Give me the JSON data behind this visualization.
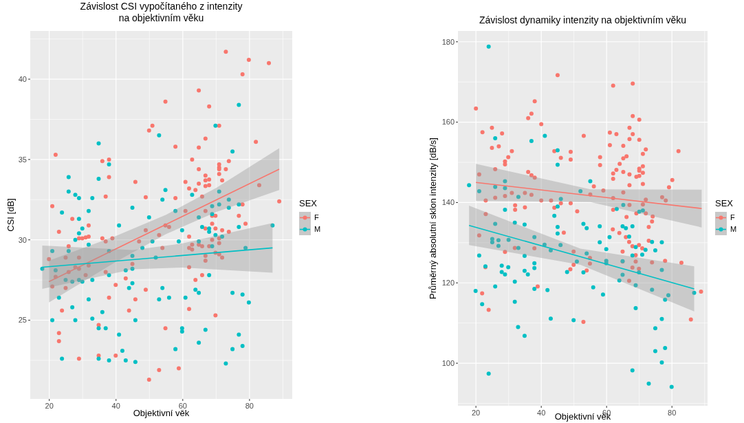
{
  "chart_data": [
    {
      "type": "scatter",
      "title": "Závislost CSI vypočítaného z intenzity\nna objektivním věku",
      "xlabel": "Objektivní věk",
      "ylabel": "CSI [dB]",
      "legend_title": "SEX",
      "legend": "right",
      "grid": true,
      "marker": "circle",
      "xlim": [
        14.3,
        92.8
      ],
      "ylim": [
        20.1,
        43.0
      ],
      "xticks": [
        20,
        {
          "value": 30,
          "label": null
        },
        40,
        {
          "value": 50,
          "label": null
        },
        60,
        {
          "value": 70,
          "label": null
        },
        80,
        {
          "value": 90,
          "label": null
        }
      ],
      "yticks": [
        {
          "value": 22.5,
          "label": null
        },
        25,
        {
          "value": 27.5,
          "label": null
        },
        30,
        {
          "value": 32.5,
          "label": null
        },
        35,
        {
          "value": 37.5,
          "label": null
        },
        40,
        {
          "value": 42.5,
          "label": null
        }
      ],
      "series": [
        {
          "name": "F",
          "color": "#f8766d",
          "x": [
            72.9,
            79.8,
            85.8,
            77.9,
            64.8,
            54.8,
            67.9,
            50.9,
            49.9,
            70.9,
            66.8,
            81.9,
            21.9,
            57.8,
            64.8,
            35.9,
            37.9,
            62.8,
            73.8,
            70.9,
            70.9,
            70.9,
            64.8,
            72.9,
            37.9,
            66.8,
            70.9,
            45.8,
            66.8,
            67.9,
            71.8,
            60.8,
            61.9,
            64.8,
            63.8,
            66.8,
            67.9,
            82.9,
            36.9,
            48.9,
            57.8,
            88.9,
            65.8,
            20.9,
            60.8,
            77.9,
            76.8,
            26.9,
            68.8,
            69.8,
            66.8,
            22.9,
            31.8,
            28.9,
            29.9,
            30.9,
            31.8,
            35.9,
            38.9,
            36.9,
            48.9,
            54.8,
            55.9,
            52.9,
            46.9,
            53.9,
            61.9,
            61.9,
            62.8,
            62.8,
            64.8,
            65.8,
            66.8,
            67.9,
            68.8,
            68.8,
            69.8,
            70.9,
            70.9,
            71.8,
            70.9,
            71.8,
            73.8,
            78.8,
            66.8,
            19.9,
            24.9,
            25.8,
            28.9,
            27.8,
            28.9,
            25.8,
            21.9,
            20.9,
            24.9,
            30.9,
            31.8,
            36.9,
            44.9,
            42.9,
            39.9,
            48.9,
            37.9,
            45.8,
            23.8,
            43.9,
            22.9,
            22.9,
            34.8,
            28.9,
            34.8,
            39.9,
            54.8,
            52.9,
            58.8,
            49.9,
            61.9,
            61.9,
            63.8,
            65.8,
            66.8,
            69.8,
            69.8
          ],
          "values": [
            41.7,
            41.2,
            41.0,
            40.3,
            39.3,
            38.6,
            38.3,
            37.1,
            36.8,
            37.1,
            36.3,
            36.1,
            35.3,
            35.8,
            35.75,
            34.9,
            35.0,
            35.0,
            34.9,
            34.7,
            34.5,
            34.4,
            34.4,
            34.4,
            33.9,
            34.0,
            34.1,
            33.6,
            33.7,
            33.75,
            33.7,
            33.6,
            33.2,
            33.5,
            33.1,
            33.35,
            33.4,
            33.4,
            32.7,
            32.65,
            32.6,
            32.4,
            32.7,
            32.1,
            31.8,
            32.2,
            31.5,
            31.3,
            31.5,
            31.5,
            31.8,
            30.5,
            30.9,
            30.1,
            30.1,
            30.15,
            30.2,
            30.1,
            30.1,
            29.9,
            30.6,
            30.9,
            30.8,
            30.3,
            29.9,
            29.5,
            30.2,
            29.5,
            29.7,
            29.4,
            29.7,
            29.6,
            30.7,
            29.6,
            30.0,
            31.0,
            30.7,
            30.1,
            29.8,
            30.6,
            29.1,
            28.9,
            30.5,
            31.0,
            29.0,
            28.8,
            28.9,
            29.6,
            28.9,
            28.3,
            28.2,
            28.0,
            27.7,
            27.1,
            27.0,
            27.8,
            28.4,
            28.0,
            28.5,
            27.6,
            27.2,
            26.9,
            26.4,
            26.3,
            25.6,
            25.6,
            24.2,
            23.7,
            24.7,
            22.6,
            22.8,
            22.8,
            24.5,
            21.9,
            22.0,
            21.3,
            28.3,
            25.7,
            27.5,
            27.8,
            28.7,
            25.3,
            29.2
          ]
        },
        {
          "name": "M",
          "color": "#00bfc4",
          "x": [
            76.8,
            69.8,
            52.9,
            34.8,
            74.9,
            37.9,
            25.8,
            34.8,
            25.8,
            27.8,
            28.9,
            32.9,
            54.8,
            62.8,
            53.9,
            70.9,
            44.9,
            23.8,
            31.8,
            57.8,
            73.8,
            73.8,
            76.8,
            68.8,
            70.9,
            68.8,
            49.9,
            28.9,
            64.8,
            17.9,
            20.9,
            21.9,
            25.8,
            24.9,
            26.9,
            28.9,
            29.9,
            22.9,
            20.9,
            26.9,
            27.8,
            23.8,
            29.9,
            28.9,
            27.8,
            31.8,
            32.9,
            37.9,
            37.9,
            31.8,
            32.9,
            35.9,
            34.8,
            36.9,
            34.8,
            37.9,
            40.9,
            40.9,
            41.9,
            42.9,
            45.8,
            42.9,
            43.9,
            44.9,
            44.9,
            44.9,
            45.8,
            47.9,
            50.9,
            51.9,
            53.9,
            52.9,
            55.9,
            58.8,
            59.8,
            60.8,
            59.8,
            59.8,
            57.8,
            65.8,
            67.9,
            67.9,
            68.8,
            64.8,
            63.8,
            64.8,
            67.9,
            66.8,
            64.8,
            69.8,
            71.8,
            74.9,
            76.8,
            78.8,
            77.9,
            79.8,
            76.8,
            74.9,
            77.9,
            72.9,
            86.9
          ],
          "values": [
            38.4,
            37.1,
            36.5,
            36.0,
            35.5,
            34.7,
            33.9,
            33.8,
            33.0,
            32.8,
            32.6,
            32.6,
            33.1,
            32.8,
            32.5,
            33.0,
            32.0,
            31.7,
            31.8,
            31.8,
            32.5,
            32.0,
            32.2,
            32.1,
            32.2,
            31.6,
            31.4,
            31.3,
            31.4,
            28.2,
            29.3,
            28.1,
            29.3,
            27.5,
            27.4,
            27.5,
            27.4,
            26.4,
            25.0,
            25.8,
            25.0,
            22.6,
            30.7,
            30.4,
            30.0,
            29.7,
            27.5,
            29.3,
            27.8,
            26.3,
            25.1,
            25.5,
            24.5,
            24.5,
            22.6,
            22.5,
            30.9,
            24.1,
            23.1,
            22.5,
            22.4,
            28.1,
            27.0,
            27.3,
            28.2,
            29.0,
            25.0,
            29.5,
            29.9,
            28.9,
            27.0,
            26.3,
            26.4,
            29.9,
            30.6,
            26.4,
            24.5,
            24.3,
            23.2,
            30.8,
            30.7,
            30.5,
            29.6,
            29.9,
            26.9,
            26.7,
            27.8,
            24.4,
            23.6,
            30.3,
            30.2,
            26.7,
            30.8,
            29.5,
            26.6,
            26.1,
            24.1,
            23.2,
            23.4,
            22.3,
            30.9
          ]
        },
        {
          "type": "line",
          "marker": "none",
          "color": "#f8766d",
          "x": [
            19.9,
            40,
            55,
            70,
            88.9
          ],
          "values": [
            27.4,
            29.44,
            30.96,
            32.48,
            34.4
          ],
          "lower": [
            26.1,
            28.64,
            30.36,
            31.73,
            33.1
          ],
          "upper": [
            28.7,
            30.24,
            31.56,
            33.23,
            35.7
          ]
        },
        {
          "type": "line",
          "marker": "none",
          "color": "#00bfc4",
          "x": [
            17.9,
            45,
            60,
            86.9
          ],
          "values": [
            28.3,
            28.77,
            29.03,
            29.5
          ],
          "lower": [
            26.95,
            28.17,
            28.28,
            27.95
          ],
          "upper": [
            29.65,
            29.37,
            29.78,
            31.05
          ]
        }
      ]
    },
    {
      "type": "scatter",
      "title": "Závislost dynamiky intenzity na objektivním věku",
      "xlabel": "Objektivní věk",
      "ylabel": "Průměrný absolutní sklon intenzity [dB/s]",
      "legend_title": "SEX",
      "legend": "right",
      "grid": true,
      "marker": "circle",
      "xlim": [
        14.5,
        90.9
      ],
      "ylim": [
        89.4,
        182.7
      ],
      "xticks": [
        20,
        {
          "value": 30,
          "label": null
        },
        40,
        {
          "value": 50,
          "label": null
        },
        60,
        {
          "value": 70,
          "label": null
        },
        80,
        {
          "value": 90,
          "label": null
        }
      ],
      "yticks": [
        {
          "value": 90,
          "label": null
        },
        100,
        {
          "value": 110,
          "label": null
        },
        120,
        {
          "value": 130,
          "label": null
        },
        140,
        {
          "value": 150,
          "label": null
        },
        160,
        {
          "value": 170,
          "label": null
        },
        180
      ],
      "series": [
        {
          "name": "F",
          "color": "#f8766d",
          "x": [
            20.0,
            45.0,
            62.0,
            68.0,
            38.0,
            37.0,
            36.0,
            40.0,
            68.0,
            70.0,
            24.9,
            22.0,
            28.0,
            24.9,
            27.0,
            31.0,
            29.9,
            28.9,
            28.9,
            53.0,
            61.0,
            63.0,
            67.0,
            68.0,
            67.0,
            70.0,
            61.0,
            65.1,
            72.0,
            71.1,
            82.0,
            44.0,
            46.0,
            49.0,
            49.0,
            58.0,
            58.0,
            66.1,
            65.1,
            64.0,
            63.0,
            62.0,
            62.0,
            65.1,
            67.0,
            69.1,
            70.0,
            70.0,
            70.0,
            71.1,
            71.1,
            71.1,
            67.0,
            80.1,
            79.1,
            21.0,
            25.9,
            36.0,
            37.0,
            38.0,
            56.1,
            59.0,
            31.0,
            35.0,
            37.0,
            28.9,
            25.9,
            23.0,
            40.0,
            43.0,
            55.0,
            62.0,
            65.1,
            67.0,
            72.0,
            77.0,
            78.1,
            32.0,
            32.0,
            35.0,
            46.0,
            49.0,
            44.0,
            51.0,
            23.0,
            62.0,
            66.1,
            69.1,
            71.1,
            72.0,
            74.1,
            21.0,
            28.9,
            22.9,
            21.9,
            23.9,
            31.9,
            37.9,
            38.9,
            46.9,
            48.9,
            49.9,
            49.9,
            52.9,
            53.9,
            54.9,
            54.9,
            61.9,
            63.9,
            65.9,
            66.9,
            67.9,
            64.9,
            64.9,
            66.9,
            67.9,
            68.9,
            68.9,
            69.9,
            69.9,
            70.9,
            72.9,
            72.9,
            73.9,
            73.9,
            77.9,
            82.9,
            85.8,
            88.9
          ],
          "values": [
            163.4,
            171.7,
            169.1,
            169.6,
            165.2,
            162.1,
            161.0,
            159.5,
            161.5,
            160.6,
            158.6,
            157.5,
            157.2,
            153.6,
            154.0,
            152.8,
            151.3,
            150.2,
            149.5,
            156.6,
            157.4,
            157.0,
            158.6,
            157.0,
            155.8,
            155.6,
            154.3,
            154.1,
            153.2,
            152.1,
            152.8,
            152.8,
            151.1,
            152.6,
            150.7,
            151.3,
            149.3,
            151.5,
            151.0,
            149.6,
            148.1,
            147.2,
            145.9,
            147.6,
            147.0,
            146.4,
            148.4,
            147.9,
            146.6,
            149.0,
            147.4,
            144.6,
            144.3,
            145.6,
            143.8,
            147.0,
            148.3,
            147.6,
            146.8,
            146.2,
            144.0,
            143.0,
            142.4,
            142.4,
            141.9,
            141.6,
            141.2,
            140.5,
            140.5,
            140.5,
            142.0,
            141.1,
            142.5,
            139.4,
            140.7,
            141.3,
            140.5,
            139.3,
            138.2,
            138.8,
            139.8,
            139.8,
            138.7,
            137.8,
            137.1,
            138.2,
            136.4,
            137.3,
            139.5,
            137.3,
            136.5,
            131.8,
            127.7,
            123.9,
            117.4,
            113.3,
            128.7,
            128.6,
            119.1,
            132.5,
            123.4,
            127.8,
            124.5,
            110.3,
            123.1,
            126.2,
            124.8,
            133.3,
            132.4,
            131.4,
            130.2,
            129.1,
            127.8,
            125.3,
            120.5,
            123.8,
            126.9,
            125.3,
            129.4,
            123.5,
            128.6,
            133.9,
            130.5,
            135.3,
            125.1,
            125.5,
            125.0,
            110.9,
            117.8
          ]
        },
        {
          "name": "M",
          "color": "#00bfc4",
          "x": [
            23.9,
            25.9,
            37.0,
            41.1,
            45.0,
            45.0,
            55.0,
            17.9,
            21.0,
            25.9,
            28.9,
            28.9,
            33.0,
            52.0,
            46.0,
            28.9,
            45.0,
            44.0,
            63.1,
            65.1,
            70.0,
            71.1,
            25.9,
            31.9,
            34.9,
            45.0,
            45.0,
            21.0,
            25.0,
            25.0,
            26.9,
            26.9,
            30.0,
            33.0,
            22.9,
            27.9,
            29.9,
            27.9,
            28.9,
            25.9,
            19.9,
            21.9,
            31.9,
            31.9,
            34.9,
            34.9,
            35.9,
            37.9,
            37.9,
            37.9,
            37.9,
            41.0,
            42.9,
            41.9,
            32.9,
            34.9,
            23.9,
            42.9,
            45.9,
            47.9,
            49.9,
            50.9,
            52.9,
            53.9,
            53.9,
            52.9,
            55.9,
            57.9,
            57.9,
            58.9,
            59.9,
            59.9,
            59.9,
            60.9,
            63.9,
            64.9,
            65.9,
            66.9,
            64.9,
            64.9,
            67.9,
            67.9,
            68.9,
            68.9,
            68.9,
            69.9,
            70.9,
            71.9,
            73.9,
            73.9,
            74.9,
            76.9,
            76.9,
            77.9,
            78.9,
            67.9,
            72.9,
            79.9,
            74.9,
            76.9,
            74.9,
            77.9,
            76.9,
            86.8
          ],
          "values": [
            178.8,
            156.0,
            155.3,
            156.6,
            153.0,
            149.4,
            145.3,
            144.3,
            142.8,
            143.9,
            145.3,
            143.6,
            141.4,
            142.8,
            140.9,
            138.2,
            139.0,
            136.7,
            138.4,
            139.4,
            137.7,
            138.0,
            134.7,
            135.0,
            134.5,
            133.9,
            132.3,
            126.8,
            130.9,
            130.1,
            130.6,
            129.2,
            130.7,
            128.7,
            124.1,
            124.3,
            123.9,
            122.7,
            122.1,
            119.1,
            118.0,
            114.7,
            120.3,
            115.3,
            126.7,
            123.0,
            122.1,
            131.4,
            124.9,
            123.7,
            118.5,
            129.5,
            128.1,
            118.2,
            109.0,
            106.8,
            97.4,
            111.1,
            129.4,
            122.7,
            110.7,
            125.3,
            134.7,
            133.6,
            127.3,
            122.6,
            118.9,
            134.1,
            130.1,
            117.1,
            128.4,
            125.5,
            124.9,
            131.4,
            120.6,
            134.1,
            133.6,
            131.5,
            125.4,
            122.0,
            134.1,
            126.8,
            128.9,
            119.4,
            113.7,
            122.6,
            127.0,
            128.2,
            130.2,
            118.3,
            128.1,
            130.1,
            123.2,
            115.8,
            116.9,
            98.2,
            94.9,
            94.1,
            108.7,
            111.0,
            103.0,
            103.8,
            100.2,
            117.5
          ]
        },
        {
          "type": "line",
          "marker": "none",
          "color": "#f8766d",
          "x": [
            20,
            55,
            89.1
          ],
          "values": [
            145.0,
            141.7,
            138.5
          ],
          "lower": [
            140.4,
            140.1,
            133.8
          ],
          "upper": [
            149.6,
            143.3,
            143.2
          ]
        },
        {
          "type": "line",
          "marker": "none",
          "color": "#00bfc4",
          "x": [
            17.9,
            52,
            86.8
          ],
          "values": [
            134.3,
            126.5,
            118.5
          ],
          "lower": [
            129.4,
            124.5,
            112.9
          ],
          "upper": [
            139.2,
            128.5,
            124.1
          ]
        }
      ]
    }
  ]
}
